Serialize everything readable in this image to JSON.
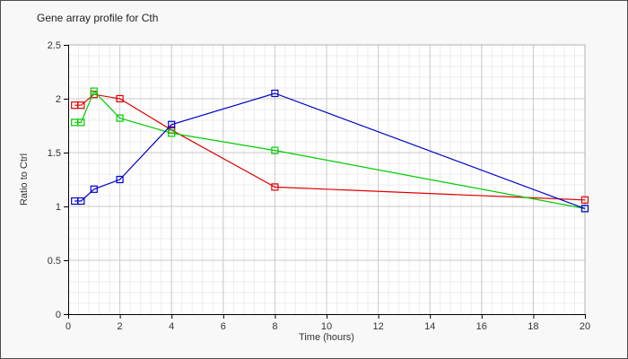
{
  "title": "Gene array profile for Cth",
  "colors": {
    "page_bg": "#f8f8f8",
    "plot_bg": "#ffffff",
    "axis": "#000000",
    "plot_border": "#b0b0b0",
    "grid_major": "#c8c8c8",
    "grid_minor": "#ededed",
    "text": "#333333",
    "series_red": "#e00000",
    "series_green": "#00cc00",
    "series_blue": "#0000cc"
  },
  "chart_data": {
    "type": "line",
    "title": "Gene array profile for Cth",
    "xlabel": "Time (hours)",
    "ylabel": "Ratio to Ctrl",
    "x": [
      0.25,
      0.5,
      1,
      2,
      4,
      8,
      20
    ],
    "series": [
      {
        "name": "red",
        "color": "#e00000",
        "values": [
          1.94,
          1.94,
          2.04,
          2.0,
          1.71,
          1.18,
          1.06
        ]
      },
      {
        "name": "green",
        "color": "#00cc00",
        "values": [
          1.78,
          1.78,
          2.07,
          1.82,
          1.68,
          1.52,
          0.98
        ]
      },
      {
        "name": "blue",
        "color": "#0000cc",
        "values": [
          1.05,
          1.05,
          1.16,
          1.25,
          1.76,
          2.05,
          0.98
        ]
      }
    ],
    "xlim": [
      0,
      20
    ],
    "ylim": [
      0,
      2.5
    ],
    "x_ticks": [
      0,
      2,
      4,
      6,
      8,
      10,
      12,
      14,
      16,
      18,
      20
    ],
    "x_tick_labels": [
      "0",
      "2",
      "4",
      "6",
      "8",
      "10",
      "12",
      "14",
      "16",
      "18",
      "20"
    ],
    "y_ticks": [
      0,
      0.5,
      1,
      1.5,
      2,
      2.5
    ],
    "y_tick_labels": [
      "0",
      "0.5",
      "1",
      "1.5",
      "2",
      "2.5"
    ],
    "grid": true,
    "minor_grid": {
      "x_step": 0.4,
      "y_step": 0.1
    },
    "marker": "square",
    "legend": "none"
  }
}
